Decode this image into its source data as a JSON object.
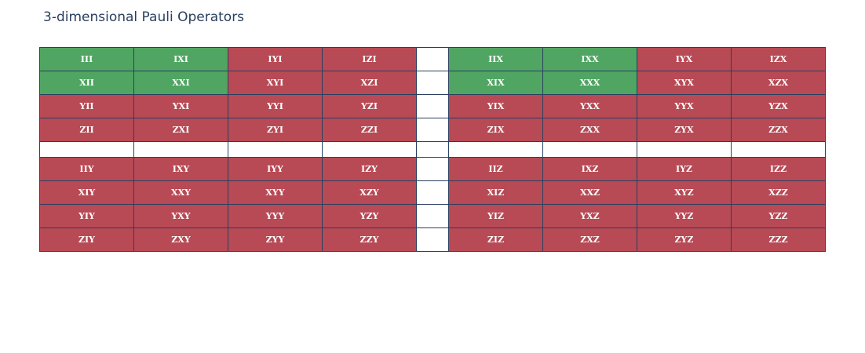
{
  "chart_data": {
    "type": "table",
    "title": "3-dimensional Pauli Operators",
    "colors": {
      "green": "#50a563",
      "red": "#b74a55",
      "blank": "#ffffff",
      "border": "#2a3f5f",
      "title": "#2a3f5f"
    },
    "rows": [
      [
        {
          "label": "III",
          "color": "green"
        },
        {
          "label": "IXI",
          "color": "green"
        },
        {
          "label": "IYI",
          "color": "red"
        },
        {
          "label": "IZI",
          "color": "red"
        },
        {
          "label": "",
          "color": "blank"
        },
        {
          "label": "IIX",
          "color": "green"
        },
        {
          "label": "IXX",
          "color": "green"
        },
        {
          "label": "IYX",
          "color": "red"
        },
        {
          "label": "IZX",
          "color": "red"
        }
      ],
      [
        {
          "label": "XII",
          "color": "green"
        },
        {
          "label": "XXI",
          "color": "green"
        },
        {
          "label": "XYI",
          "color": "red"
        },
        {
          "label": "XZI",
          "color": "red"
        },
        {
          "label": "",
          "color": "blank"
        },
        {
          "label": "XIX",
          "color": "green"
        },
        {
          "label": "XXX",
          "color": "green"
        },
        {
          "label": "XYX",
          "color": "red"
        },
        {
          "label": "XZX",
          "color": "red"
        }
      ],
      [
        {
          "label": "YII",
          "color": "red"
        },
        {
          "label": "YXI",
          "color": "red"
        },
        {
          "label": "YYI",
          "color": "red"
        },
        {
          "label": "YZI",
          "color": "red"
        },
        {
          "label": "",
          "color": "blank"
        },
        {
          "label": "YIX",
          "color": "red"
        },
        {
          "label": "YXX",
          "color": "red"
        },
        {
          "label": "YYX",
          "color": "red"
        },
        {
          "label": "YZX",
          "color": "red"
        }
      ],
      [
        {
          "label": "ZII",
          "color": "red"
        },
        {
          "label": "ZXI",
          "color": "red"
        },
        {
          "label": "ZYI",
          "color": "red"
        },
        {
          "label": "ZZI",
          "color": "red"
        },
        {
          "label": "",
          "color": "blank"
        },
        {
          "label": "ZIX",
          "color": "red"
        },
        {
          "label": "ZXX",
          "color": "red"
        },
        {
          "label": "ZYX",
          "color": "red"
        },
        {
          "label": "ZZX",
          "color": "red"
        }
      ],
      [
        {
          "label": "",
          "color": "blank"
        },
        {
          "label": "",
          "color": "blank"
        },
        {
          "label": "",
          "color": "blank"
        },
        {
          "label": "",
          "color": "blank"
        },
        {
          "label": "",
          "color": "blank"
        },
        {
          "label": "",
          "color": "blank"
        },
        {
          "label": "",
          "color": "blank"
        },
        {
          "label": "",
          "color": "blank"
        },
        {
          "label": "",
          "color": "blank"
        }
      ],
      [
        {
          "label": "IIY",
          "color": "red"
        },
        {
          "label": "IXY",
          "color": "red"
        },
        {
          "label": "IYY",
          "color": "red"
        },
        {
          "label": "IZY",
          "color": "red"
        },
        {
          "label": "",
          "color": "blank"
        },
        {
          "label": "IIZ",
          "color": "red"
        },
        {
          "label": "IXZ",
          "color": "red"
        },
        {
          "label": "IYZ",
          "color": "red"
        },
        {
          "label": "IZZ",
          "color": "red"
        }
      ],
      [
        {
          "label": "XIY",
          "color": "red"
        },
        {
          "label": "XXY",
          "color": "red"
        },
        {
          "label": "XYY",
          "color": "red"
        },
        {
          "label": "XZY",
          "color": "red"
        },
        {
          "label": "",
          "color": "blank"
        },
        {
          "label": "XIZ",
          "color": "red"
        },
        {
          "label": "XXZ",
          "color": "red"
        },
        {
          "label": "XYZ",
          "color": "red"
        },
        {
          "label": "XZZ",
          "color": "red"
        }
      ],
      [
        {
          "label": "YIY",
          "color": "red"
        },
        {
          "label": "YXY",
          "color": "red"
        },
        {
          "label": "YYY",
          "color": "red"
        },
        {
          "label": "YZY",
          "color": "red"
        },
        {
          "label": "",
          "color": "blank"
        },
        {
          "label": "YIZ",
          "color": "red"
        },
        {
          "label": "YXZ",
          "color": "red"
        },
        {
          "label": "YYZ",
          "color": "red"
        },
        {
          "label": "YZZ",
          "color": "red"
        }
      ],
      [
        {
          "label": "ZIY",
          "color": "red"
        },
        {
          "label": "ZXY",
          "color": "red"
        },
        {
          "label": "ZYY",
          "color": "red"
        },
        {
          "label": "ZZY",
          "color": "red"
        },
        {
          "label": "",
          "color": "blank"
        },
        {
          "label": "ZIZ",
          "color": "red"
        },
        {
          "label": "ZXZ",
          "color": "red"
        },
        {
          "label": "ZYZ",
          "color": "red"
        },
        {
          "label": "ZZZ",
          "color": "red"
        }
      ]
    ]
  }
}
